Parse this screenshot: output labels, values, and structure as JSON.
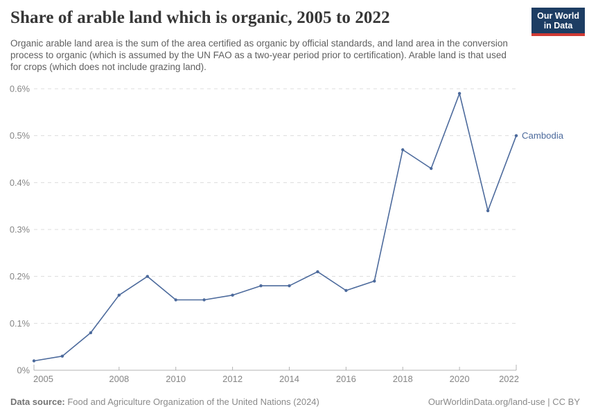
{
  "header": {
    "title": "Share of arable land which is organic, 2005 to 2022",
    "subtitle": "Organic arable land area is the sum of the area certified as organic by official standards, and land area in the conversion process to organic (which is assumed by the UN FAO as a two-year period prior to certification). Arable land is that used for crops (which does not include grazing land).",
    "logo": {
      "line1": "Our World",
      "line2": "in Data",
      "bg_color": "#1d3d63",
      "accent_color": "#d03a34"
    }
  },
  "chart_data": {
    "type": "line",
    "title": "Share of arable land which is organic, 2005 to 2022",
    "x": [
      2005,
      2006,
      2007,
      2008,
      2009,
      2010,
      2011,
      2012,
      2013,
      2014,
      2015,
      2016,
      2017,
      2018,
      2019,
      2020,
      2021,
      2022
    ],
    "series": [
      {
        "name": "Cambodia",
        "color": "#4c6a9c",
        "values": [
          0.02,
          0.03,
          0.08,
          0.16,
          0.2,
          0.15,
          0.15,
          0.16,
          0.18,
          0.18,
          0.21,
          0.17,
          0.19,
          0.47,
          0.43,
          0.59,
          0.34,
          0.5
        ]
      }
    ],
    "xlabel": "",
    "ylabel": "",
    "unit": "%",
    "ylim": [
      0,
      0.6
    ],
    "ytick_step": 0.1,
    "ytick_labels": [
      "0%",
      "0.1%",
      "0.2%",
      "0.3%",
      "0.4%",
      "0.5%",
      "0.6%"
    ],
    "xticks": [
      2005,
      2008,
      2010,
      2012,
      2014,
      2016,
      2018,
      2020,
      2022
    ],
    "grid": "horizontal-dashed",
    "legend_position": "end-of-line-label",
    "style": {
      "grid_color": "#dcdcdc",
      "axis_color": "#b3b3b3",
      "tick_label_color": "#858585"
    }
  },
  "footer": {
    "datasource_label": "Data source:",
    "datasource_text": " Food and Agriculture Organization of the United Nations (2024)",
    "license_text": "OurWorldinData.org/land-use | CC BY"
  }
}
